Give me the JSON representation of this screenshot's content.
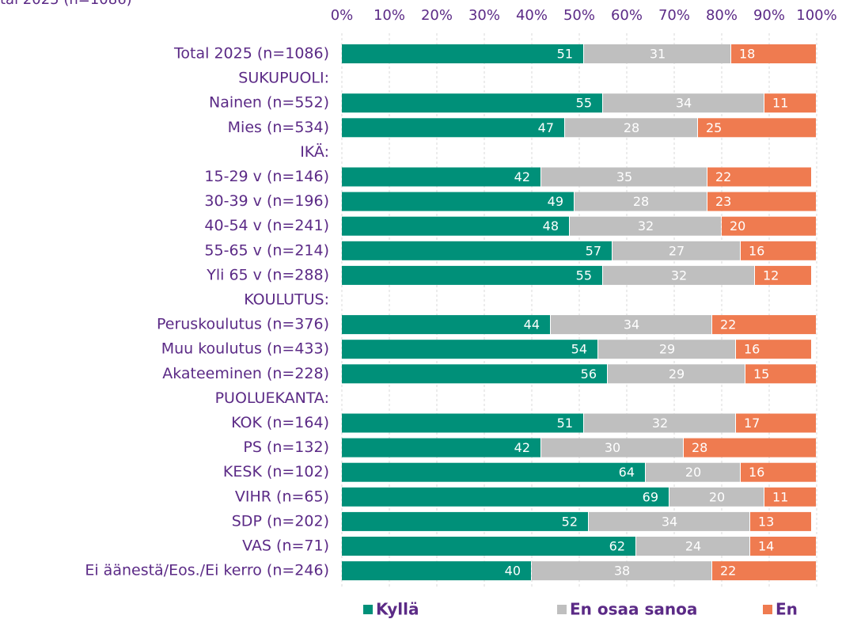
{
  "chart_data": {
    "type": "stacked_barh",
    "subtitle": "tal 2025 (n=1086)",
    "categories": [
      "Total 2025 (n=1086)",
      "SUKUPUOLI:",
      "Nainen (n=552)",
      "Mies (n=534)",
      "IKÄ:",
      "15-29 v (n=146)",
      "30-39 v (n=196)",
      "40-54 v (n=241)",
      "55-65 v (n=214)",
      "Yli 65 v (n=288)",
      "KOULUTUS:",
      "Peruskoulutus (n=376)",
      "Muu koulutus (n=433)",
      "Akateeminen (n=228)",
      "PUOLUEKANTA:",
      "KOK (n=164)",
      "PS (n=132)",
      "KESK (n=102)",
      "VIHR (n=65)",
      "SDP (n=202)",
      "VAS (n=71)",
      "Ei äänestä/Eos./Ei kerro (n=246)"
    ],
    "series": [
      {
        "name": "Kyllä",
        "color": "#009079",
        "values": [
          51,
          null,
          55,
          47,
          null,
          42,
          49,
          48,
          57,
          55,
          null,
          44,
          54,
          56,
          null,
          51,
          42,
          64,
          69,
          52,
          62,
          40
        ]
      },
      {
        "name": "En osaa sanoa",
        "color": "#bfbfbf",
        "values": [
          31,
          null,
          34,
          28,
          null,
          35,
          28,
          32,
          27,
          32,
          null,
          34,
          29,
          29,
          null,
          32,
          30,
          20,
          20,
          34,
          24,
          38
        ]
      },
      {
        "name": "En",
        "color": "#ef7b50",
        "values": [
          18,
          null,
          11,
          25,
          null,
          22,
          23,
          20,
          16,
          12,
          null,
          22,
          16,
          15,
          null,
          17,
          28,
          16,
          11,
          13,
          14,
          22
        ]
      }
    ],
    "xlim": [
      0,
      100
    ],
    "xticks": [
      {
        "value": 0,
        "label": "0%"
      },
      {
        "value": 10,
        "label": "10%"
      },
      {
        "value": 20,
        "label": "20%"
      },
      {
        "value": 30,
        "label": "30%"
      },
      {
        "value": 40,
        "label": "40%"
      },
      {
        "value": 50,
        "label": "50%"
      },
      {
        "value": 60,
        "label": "60%"
      },
      {
        "value": 70,
        "label": "70%"
      },
      {
        "value": 80,
        "label": "80%"
      },
      {
        "value": 90,
        "label": "90%"
      },
      {
        "value": 100,
        "label": "100%"
      }
    ],
    "grid": true,
    "legend": "bottom"
  }
}
